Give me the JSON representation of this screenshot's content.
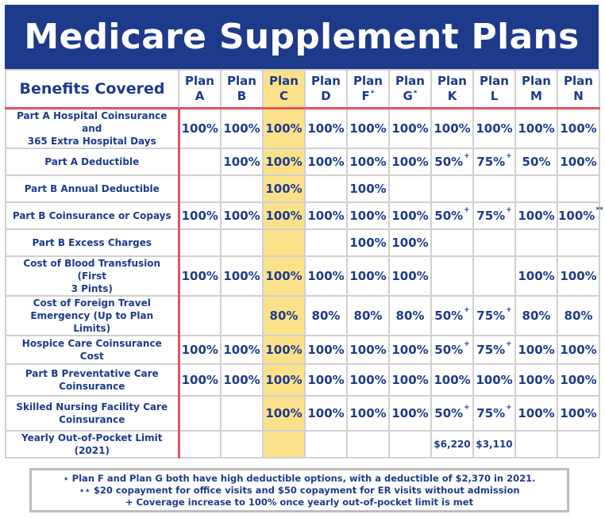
{
  "title": "Medicare Supplement Plans",
  "colors": {
    "banner": "#1e3a8a",
    "text": "#1e3a8a",
    "highlight": "#fbe28a",
    "divider": "#e05561",
    "grid": "#d0d0d0"
  },
  "table": {
    "benefit_header": "Benefits Covered",
    "plans": [
      {
        "label": "Plan",
        "letter": "A",
        "mark": ""
      },
      {
        "label": "Plan",
        "letter": "B",
        "mark": ""
      },
      {
        "label": "Plan",
        "letter": "C",
        "mark": ""
      },
      {
        "label": "Plan",
        "letter": "D",
        "mark": ""
      },
      {
        "label": "Plan",
        "letter": "F",
        "mark": "*"
      },
      {
        "label": "Plan",
        "letter": "G",
        "mark": "*"
      },
      {
        "label": "Plan",
        "letter": "K",
        "mark": ""
      },
      {
        "label": "Plan",
        "letter": "L",
        "mark": ""
      },
      {
        "label": "Plan",
        "letter": "M",
        "mark": ""
      },
      {
        "label": "Plan",
        "letter": "N",
        "mark": ""
      }
    ],
    "rows": [
      {
        "benefit": [
          "Part A Hospital Coinsurance and",
          "365 Extra Hospital Days"
        ],
        "values": [
          [
            "100%",
            ""
          ],
          [
            "100%",
            ""
          ],
          [
            "100%",
            ""
          ],
          [
            "100%",
            ""
          ],
          [
            "100%",
            ""
          ],
          [
            "100%",
            ""
          ],
          [
            "100%",
            ""
          ],
          [
            "100%",
            ""
          ],
          [
            "100%",
            ""
          ],
          [
            "100%",
            ""
          ]
        ]
      },
      {
        "benefit": [
          "Part A Deductible"
        ],
        "values": [
          [
            "",
            ""
          ],
          [
            "100%",
            ""
          ],
          [
            "100%",
            ""
          ],
          [
            "100%",
            ""
          ],
          [
            "100%",
            ""
          ],
          [
            "100%",
            ""
          ],
          [
            "50%",
            "+"
          ],
          [
            "75%",
            "+"
          ],
          [
            "50%",
            ""
          ],
          [
            "100%",
            ""
          ]
        ]
      },
      {
        "benefit": [
          "Part B Annual Deductible"
        ],
        "values": [
          [
            "",
            ""
          ],
          [
            "",
            ""
          ],
          [
            "100%",
            ""
          ],
          [
            "",
            ""
          ],
          [
            "100%",
            ""
          ],
          [
            "",
            ""
          ],
          [
            "",
            ""
          ],
          [
            "",
            ""
          ],
          [
            "",
            ""
          ],
          [
            "",
            ""
          ]
        ]
      },
      {
        "benefit": [
          "Part B Coinsurance or Copays"
        ],
        "values": [
          [
            "100%",
            ""
          ],
          [
            "100%",
            ""
          ],
          [
            "100%",
            ""
          ],
          [
            "100%",
            ""
          ],
          [
            "100%",
            ""
          ],
          [
            "100%",
            ""
          ],
          [
            "50%",
            "+"
          ],
          [
            "75%",
            "+"
          ],
          [
            "100%",
            ""
          ],
          [
            "100%",
            "**"
          ]
        ]
      },
      {
        "benefit": [
          "Part  B Excess Charges"
        ],
        "values": [
          [
            "",
            ""
          ],
          [
            "",
            ""
          ],
          [
            "",
            ""
          ],
          [
            "",
            ""
          ],
          [
            "100%",
            ""
          ],
          [
            "100%",
            ""
          ],
          [
            "",
            ""
          ],
          [
            "",
            ""
          ],
          [
            "",
            ""
          ],
          [
            "",
            ""
          ]
        ]
      },
      {
        "benefit": [
          "Cost of Blood Transfusion (First",
          "3 Pints)"
        ],
        "values": [
          [
            "100%",
            ""
          ],
          [
            "100%",
            ""
          ],
          [
            "100%",
            ""
          ],
          [
            "100%",
            ""
          ],
          [
            "100%",
            ""
          ],
          [
            "100%",
            ""
          ],
          [
            "",
            ""
          ],
          [
            "",
            ""
          ],
          [
            "100%",
            ""
          ],
          [
            "100%",
            ""
          ]
        ]
      },
      {
        "benefit": [
          "Cost of Foreign Travel",
          "Emergency (Up to Plan Limits)"
        ],
        "values": [
          [
            "",
            ""
          ],
          [
            "",
            ""
          ],
          [
            "80%",
            ""
          ],
          [
            "80%",
            ""
          ],
          [
            "80%",
            ""
          ],
          [
            "80%",
            ""
          ],
          [
            "50%",
            "+"
          ],
          [
            "75%",
            "+"
          ],
          [
            "80%",
            ""
          ],
          [
            "80%",
            ""
          ]
        ]
      },
      {
        "benefit": [
          "Hospice Care Coinsurance Cost"
        ],
        "values": [
          [
            "100%",
            ""
          ],
          [
            "100%",
            ""
          ],
          [
            "100%",
            ""
          ],
          [
            "100%",
            ""
          ],
          [
            "100%",
            ""
          ],
          [
            "100%",
            ""
          ],
          [
            "50%",
            "+"
          ],
          [
            "75%",
            "+"
          ],
          [
            "100%",
            ""
          ],
          [
            "100%",
            ""
          ]
        ]
      },
      {
        "benefit": [
          "Part B Preventative Care",
          "Coinsurance"
        ],
        "values": [
          [
            "100%",
            ""
          ],
          [
            "100%",
            ""
          ],
          [
            "100%",
            ""
          ],
          [
            "100%",
            ""
          ],
          [
            "100%",
            ""
          ],
          [
            "100%",
            ""
          ],
          [
            "100%",
            ""
          ],
          [
            "100%",
            ""
          ],
          [
            "100%",
            ""
          ],
          [
            "100%",
            ""
          ]
        ]
      },
      {
        "benefit": [
          "Skilled Nursing Facility Care",
          "Coinsurance"
        ],
        "values": [
          [
            "",
            ""
          ],
          [
            "",
            ""
          ],
          [
            "100%",
            ""
          ],
          [
            "100%",
            ""
          ],
          [
            "100%",
            ""
          ],
          [
            "100%",
            ""
          ],
          [
            "50%",
            "+"
          ],
          [
            "75%",
            "+"
          ],
          [
            "100%",
            ""
          ],
          [
            "100%",
            ""
          ]
        ]
      },
      {
        "benefit": [
          "Yearly Out-of-Pocket Limit",
          "(2021)"
        ],
        "values": [
          [
            "",
            ""
          ],
          [
            "",
            ""
          ],
          [
            "",
            ""
          ],
          [
            "",
            ""
          ],
          [
            "",
            ""
          ],
          [
            "",
            ""
          ],
          [
            "$6,220",
            ""
          ],
          [
            "$3,110",
            ""
          ],
          [
            "",
            ""
          ],
          [
            "",
            ""
          ]
        ]
      }
    ]
  },
  "notes": [
    "⋆ Plan F and Plan G both have high deductible options, with a deductible of $2,370 in 2021.",
    "⋆⋆ $20 copayment for office visits and $50 copayment for ER visits without admission",
    "+ Coverage increase to 100% once yearly out-of-pocket limit is met"
  ]
}
